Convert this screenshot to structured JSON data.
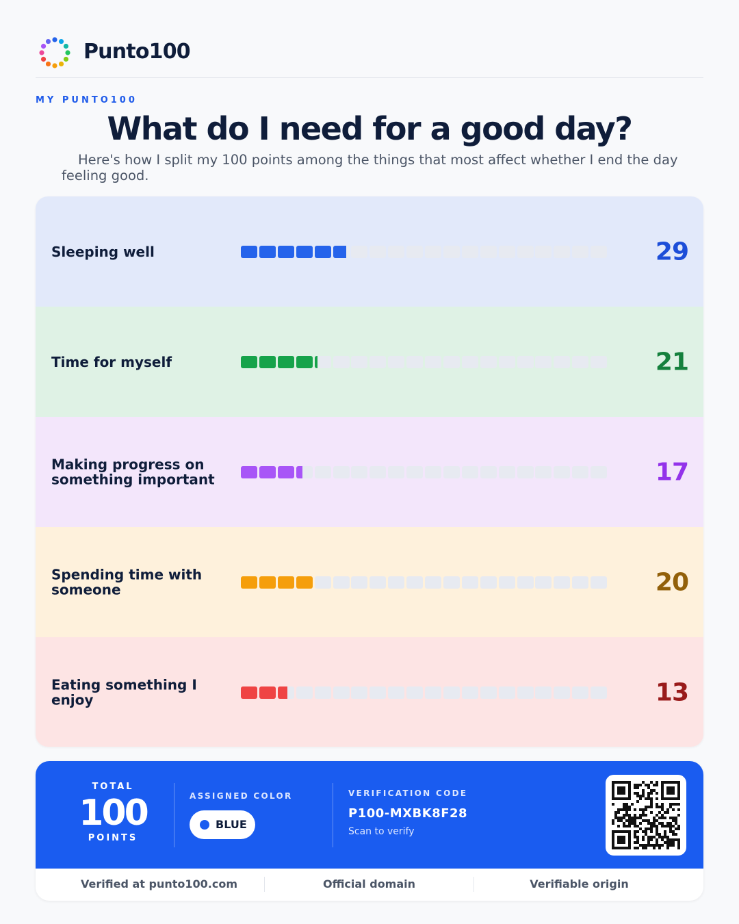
{
  "brand": {
    "name": "Punto100"
  },
  "page": {
    "kicker": "MY PUNTO100",
    "title": "What do I need for a good day?",
    "subtitle": "Here's how I split my 100 points among the things that most affect whether I end the day feeling good."
  },
  "chart_data": {
    "type": "bar",
    "categories": [
      "Sleeping well",
      "Time for myself",
      "Making progress on something important",
      "Spending time with someone",
      "Eating something I enjoy"
    ],
    "values": [
      29,
      21,
      17,
      20,
      13
    ],
    "xlim": [
      0,
      100
    ],
    "colors": {
      "fills": [
        "#2563eb",
        "#16a34a",
        "#a855f7",
        "#f59e0b",
        "#ef4444"
      ],
      "rows": [
        "#e2e9fa",
        "#dff2e5",
        "#f3e6fb",
        "#fef1dc",
        "#fde4e4"
      ],
      "values": [
        "#1d4ed8",
        "#15803d",
        "#9333ea",
        "#92600a",
        "#991b1b"
      ]
    }
  },
  "summary": {
    "total_label": "TOTAL",
    "total_value": "100",
    "total_unit": "POINTS",
    "color_label": "ASSIGNED COLOR",
    "color_value": "BLUE",
    "verify_label": "VERIFICATION CODE",
    "verify_code": "P100-MXBK8F28",
    "verify_hint": "Scan to verify",
    "accent": "#1a5cf0"
  },
  "footer": {
    "items": [
      "Verified at punto100.com",
      "Official domain",
      "Verifiable origin"
    ]
  },
  "icons": {
    "logo": "dotted-ring-logo-icon",
    "qr": "qr-code-icon",
    "color_dot": "blue-dot-icon"
  }
}
